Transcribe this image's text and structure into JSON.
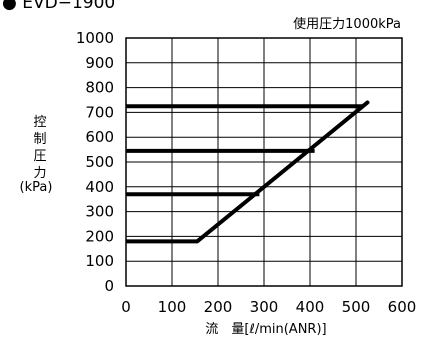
{
  "chart_data": {
    "type": "line",
    "title": "● EVD−1900",
    "annotation": "使用圧力1000kPa",
    "ylabel": "控制圧力",
    "yunit": "(kPa)",
    "xlabel": "流　量[ℓ/min(ANR)]",
    "xlim": [
      0,
      600
    ],
    "ylim": [
      0,
      1000
    ],
    "xticks": [
      "0",
      "100",
      "200",
      "300",
      "400",
      "500",
      "600"
    ],
    "yticks": [
      "0",
      "100",
      "200",
      "300",
      "400",
      "500",
      "600",
      "700",
      "800",
      "900",
      "1000"
    ],
    "grid": true,
    "diagonal": {
      "x": [
        155,
        525
      ],
      "y": [
        180,
        740
      ]
    },
    "hlines": [
      {
        "y": 180,
        "x_end": 155
      },
      {
        "y": 370,
        "x_end": 290
      },
      {
        "y": 545,
        "x_end": 410
      },
      {
        "y": 725,
        "x_end": 515
      }
    ],
    "line_color": "#000000"
  }
}
